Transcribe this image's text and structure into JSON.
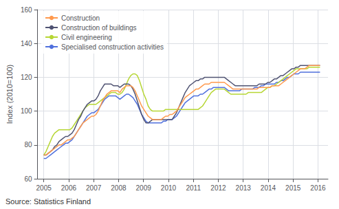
{
  "chart_data": {
    "type": "line",
    "ylabel": "Index (2010=100)",
    "annotations": [
      "Source: Statistics Finland"
    ],
    "xlim": [
      2004.75,
      2016.4
    ],
    "ylim": [
      60,
      160
    ],
    "yticks": [
      60,
      80,
      100,
      120,
      140,
      160
    ],
    "xticks": [
      2005,
      2006,
      2007,
      2008,
      2009,
      2010,
      2011,
      2012,
      2013,
      2014,
      2015,
      2016
    ],
    "grid": true,
    "legend": "upper left",
    "x": [
      2005.0,
      2005.0872,
      2005.1745,
      2005.2617,
      2005.349,
      2005.4362,
      2005.5235,
      2005.6107,
      2005.698,
      2005.7852,
      2005.8724,
      2005.9597,
      2006.0469,
      2006.1342,
      2006.2214,
      2006.3087,
      2006.3959,
      2006.4831,
      2006.5704,
      2006.6576,
      2006.7449,
      2006.8321,
      2006.9194,
      2007.0066,
      2007.0939,
      2007.1811,
      2007.2683,
      2007.3556,
      2007.4428,
      2007.5301,
      2007.6173,
      2007.7046,
      2007.7918,
      2007.8791,
      2007.9663,
      2008.0535,
      2008.1408,
      2008.228,
      2008.3153,
      2008.4025,
      2008.4898,
      2008.577,
      2008.6643,
      2008.7515,
      2008.8387,
      2008.926,
      2009.0132,
      2009.1005,
      2009.1877,
      2009.275,
      2009.3622,
      2009.4494,
      2009.5367,
      2009.6239,
      2009.7112,
      2009.7984,
      2009.8857,
      2009.9729,
      2010.0602,
      2010.1474,
      2010.2346,
      2010.3219,
      2010.4091,
      2010.4964,
      2010.5836,
      2010.6709,
      2010.7581,
      2010.8454,
      2010.9326,
      2011.0198,
      2011.1071,
      2011.1943,
      2011.2816,
      2011.3688,
      2011.4561,
      2011.5433,
      2011.6306,
      2011.7178,
      2011.805,
      2011.8923,
      2011.9795,
      2012.0668,
      2012.154,
      2012.2413,
      2012.3285,
      2012.4157,
      2012.503,
      2012.5902,
      2012.6775,
      2012.7647,
      2012.852,
      2012.9392,
      2013.0265,
      2013.1137,
      2013.2009,
      2013.2882,
      2013.3754,
      2013.4627,
      2013.5499,
      2013.6372,
      2013.7244,
      2013.8117,
      2013.8989,
      2013.9861,
      2014.0734,
      2014.1606,
      2014.2479,
      2014.3351,
      2014.4224,
      2014.5096,
      2014.5969,
      2014.6841,
      2014.7713,
      2014.8586,
      2014.9458,
      2015.0331,
      2015.1203,
      2015.2076,
      2015.2948,
      2015.382,
      2015.4693,
      2015.5565,
      2015.6438,
      2015.731,
      2015.8183,
      2015.9055,
      2015.9928,
      2016.08
    ],
    "series": [
      {
        "name": "Specialised construction activities",
        "values": [
          72,
          72,
          73,
          74,
          75,
          76,
          77,
          78,
          79,
          80,
          81,
          81,
          82,
          83,
          85,
          87,
          89,
          91,
          93,
          95,
          97,
          98,
          99,
          99,
          100,
          101,
          103,
          105,
          107,
          108,
          109,
          109,
          109,
          109,
          108,
          107,
          108,
          109,
          110,
          110,
          109,
          108,
          106,
          104,
          101,
          98,
          96,
          94,
          93,
          93,
          93,
          93,
          93,
          93,
          93,
          94,
          94,
          95,
          95,
          95,
          96,
          97,
          99,
          101,
          103,
          105,
          106,
          107,
          108,
          109,
          109,
          109,
          110,
          110,
          111,
          112,
          113,
          113,
          114,
          114,
          114,
          114,
          114,
          114,
          113,
          112,
          112,
          112,
          112,
          112,
          112,
          113,
          113,
          113,
          113,
          113,
          113,
          114,
          114,
          114,
          115,
          115,
          116,
          116,
          116,
          116,
          116,
          117,
          117,
          118,
          118,
          119,
          120,
          120,
          121,
          122,
          122,
          122,
          123,
          123,
          123,
          123,
          123,
          123,
          123,
          123,
          123,
          123
        ]
      },
      {
        "name": "Civil engineering",
        "values": [
          74,
          76,
          79,
          82,
          85,
          87,
          88,
          89,
          89,
          89,
          89,
          89,
          89,
          90,
          92,
          94,
          96,
          98,
          100,
          102,
          103,
          104,
          104,
          104,
          104,
          105,
          106,
          107,
          108,
          109,
          110,
          111,
          111,
          111,
          110,
          110,
          111,
          113,
          116,
          119,
          121,
          122,
          122,
          121,
          118,
          114,
          110,
          107,
          103,
          101,
          100,
          100,
          100,
          100,
          100,
          100,
          101,
          101,
          101,
          101,
          101,
          101,
          101,
          101,
          101,
          101,
          101,
          101,
          101,
          101,
          101,
          101,
          102,
          103,
          105,
          107,
          109,
          111,
          112,
          113,
          113,
          113,
          113,
          113,
          112,
          111,
          110,
          110,
          110,
          110,
          110,
          110,
          110,
          110,
          111,
          111,
          111,
          111,
          111,
          111,
          111,
          112,
          113,
          114,
          114,
          115,
          115,
          116,
          117,
          118,
          119,
          120,
          121,
          122,
          123,
          124,
          125,
          125,
          125,
          125,
          125,
          125,
          126,
          126,
          126,
          126,
          126,
          126
        ]
      },
      {
        "name": "Construction of buildings",
        "values": [
          74,
          74,
          75,
          76,
          77,
          79,
          80,
          82,
          83,
          84,
          85,
          85,
          86,
          87,
          89,
          92,
          95,
          97,
          100,
          102,
          104,
          105,
          106,
          106,
          107,
          109,
          112,
          114,
          116,
          116,
          116,
          116,
          115,
          115,
          115,
          114,
          115,
          116,
          116,
          116,
          115,
          113,
          110,
          106,
          102,
          98,
          95,
          93,
          93,
          94,
          95,
          95,
          95,
          95,
          95,
          95,
          95,
          95,
          95,
          95,
          97,
          99,
          102,
          105,
          108,
          111,
          113,
          115,
          116,
          117,
          118,
          118,
          119,
          119,
          120,
          120,
          120,
          120,
          120,
          120,
          120,
          120,
          120,
          120,
          119,
          118,
          117,
          116,
          115,
          115,
          115,
          115,
          115,
          115,
          115,
          115,
          115,
          115,
          115,
          116,
          116,
          116,
          116,
          117,
          117,
          118,
          119,
          119,
          120,
          121,
          121,
          122,
          123,
          124,
          125,
          125,
          126,
          126,
          127,
          127,
          127,
          127,
          127,
          127,
          127,
          127,
          127,
          127
        ]
      },
      {
        "name": "Construction",
        "values": [
          74,
          74,
          75,
          76,
          77,
          78,
          79,
          80,
          80,
          81,
          82,
          83,
          83,
          84,
          85,
          87,
          89,
          91,
          93,
          94,
          95,
          96,
          97,
          97,
          98,
          100,
          103,
          106,
          108,
          110,
          111,
          112,
          112,
          112,
          112,
          111,
          113,
          114,
          115,
          115,
          115,
          114,
          112,
          109,
          106,
          103,
          101,
          99,
          97,
          96,
          95,
          95,
          95,
          95,
          95,
          96,
          97,
          97,
          98,
          98,
          99,
          100,
          102,
          104,
          106,
          108,
          109,
          110,
          111,
          112,
          113,
          113,
          114,
          115,
          116,
          116,
          116,
          117,
          117,
          117,
          117,
          117,
          117,
          117,
          116,
          115,
          114,
          113,
          113,
          113,
          113,
          113,
          113,
          113,
          113,
          113,
          113,
          113,
          113,
          114,
          114,
          114,
          114,
          114,
          114,
          115,
          115,
          115,
          115,
          116,
          117,
          118,
          119,
          120,
          121,
          122,
          123,
          124,
          125,
          125,
          125,
          126,
          127,
          127,
          127,
          127,
          127,
          127
        ]
      }
    ]
  }
}
